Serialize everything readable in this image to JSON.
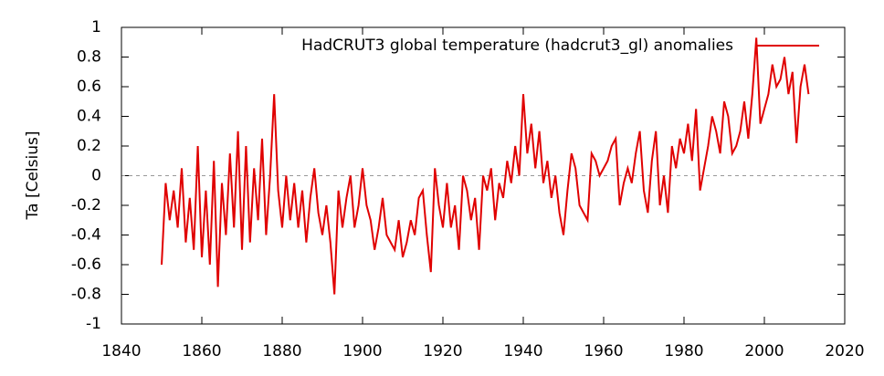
{
  "chart_data": {
    "type": "line",
    "ylabel": "Ta [Celsius]",
    "series": [
      {
        "name": "HadCRUT3 global temperature (hadcrut3_gl) anomalies",
        "color": "#e00000",
        "x": [
          1850,
          1851,
          1852,
          1853,
          1854,
          1855,
          1856,
          1857,
          1858,
          1859,
          1860,
          1861,
          1862,
          1863,
          1864,
          1865,
          1866,
          1867,
          1868,
          1869,
          1870,
          1871,
          1872,
          1873,
          1874,
          1875,
          1876,
          1877,
          1878,
          1879,
          1880,
          1881,
          1882,
          1883,
          1884,
          1885,
          1886,
          1887,
          1888,
          1889,
          1890,
          1891,
          1892,
          1893,
          1894,
          1895,
          1896,
          1897,
          1898,
          1899,
          1900,
          1901,
          1902,
          1903,
          1904,
          1905,
          1906,
          1907,
          1908,
          1909,
          1910,
          1911,
          1912,
          1913,
          1914,
          1915,
          1916,
          1917,
          1918,
          1919,
          1920,
          1921,
          1922,
          1923,
          1924,
          1925,
          1926,
          1927,
          1928,
          1929,
          1930,
          1931,
          1932,
          1933,
          1934,
          1935,
          1936,
          1937,
          1938,
          1939,
          1940,
          1941,
          1942,
          1943,
          1944,
          1945,
          1946,
          1947,
          1948,
          1949,
          1950,
          1951,
          1952,
          1953,
          1954,
          1955,
          1956,
          1957,
          1958,
          1959,
          1960,
          1961,
          1962,
          1963,
          1964,
          1965,
          1966,
          1967,
          1968,
          1969,
          1970,
          1971,
          1972,
          1973,
          1974,
          1975,
          1976,
          1977,
          1978,
          1979,
          1980,
          1981,
          1982,
          1983,
          1984,
          1985,
          1986,
          1987,
          1988,
          1989,
          1990,
          1991,
          1992,
          1993,
          1994,
          1995,
          1996,
          1997,
          1998,
          1999,
          2000,
          2001,
          2002,
          2003,
          2004,
          2005,
          2006,
          2007,
          2008,
          2009,
          2010,
          2011
        ],
        "values": [
          -0.6,
          -0.05,
          -0.3,
          -0.1,
          -0.35,
          0.05,
          -0.45,
          -0.15,
          -0.5,
          0.2,
          -0.55,
          -0.1,
          -0.6,
          0.1,
          -0.75,
          -0.05,
          -0.4,
          0.15,
          -0.35,
          0.3,
          -0.5,
          0.2,
          -0.45,
          0.05,
          -0.3,
          0.25,
          -0.4,
          0.0,
          0.55,
          -0.1,
          -0.35,
          0.0,
          -0.3,
          -0.05,
          -0.35,
          -0.1,
          -0.45,
          -0.15,
          0.05,
          -0.25,
          -0.4,
          -0.2,
          -0.45,
          -0.8,
          -0.1,
          -0.35,
          -0.15,
          0.0,
          -0.35,
          -0.2,
          0.05,
          -0.2,
          -0.3,
          -0.5,
          -0.35,
          -0.15,
          -0.4,
          -0.45,
          -0.5,
          -0.3,
          -0.55,
          -0.45,
          -0.3,
          -0.4,
          -0.15,
          -0.1,
          -0.4,
          -0.65,
          0.05,
          -0.2,
          -0.35,
          -0.05,
          -0.35,
          -0.2,
          -0.5,
          0.0,
          -0.1,
          -0.3,
          -0.15,
          -0.5,
          0.0,
          -0.1,
          0.05,
          -0.3,
          -0.05,
          -0.15,
          0.1,
          -0.05,
          0.2,
          0.0,
          0.55,
          0.15,
          0.35,
          0.05,
          0.3,
          -0.05,
          0.1,
          -0.15,
          0.0,
          -0.25,
          -0.4,
          -0.1,
          0.15,
          0.05,
          -0.2,
          -0.25,
          -0.3,
          0.15,
          0.1,
          0.0,
          0.05,
          0.1,
          0.2,
          0.25,
          -0.2,
          -0.05,
          0.05,
          -0.05,
          0.15,
          0.3,
          -0.1,
          -0.25,
          0.1,
          0.3,
          -0.2,
          0.0,
          -0.25,
          0.2,
          0.05,
          0.25,
          0.15,
          0.35,
          0.1,
          0.45,
          -0.1,
          0.05,
          0.2,
          0.4,
          0.3,
          0.15,
          0.5,
          0.4,
          0.15,
          0.2,
          0.3,
          0.5,
          0.25,
          0.55,
          0.93,
          0.35,
          0.45,
          0.55,
          0.75,
          0.6,
          0.65,
          0.8,
          0.55,
          0.7,
          0.22,
          0.6,
          0.75,
          0.55
        ]
      }
    ],
    "xlim": [
      1840,
      2020
    ],
    "xticks": [
      1840,
      1860,
      1880,
      1900,
      1920,
      1940,
      1960,
      1980,
      2000,
      2020
    ],
    "ylim": [
      -1,
      1
    ],
    "yticks": [
      -1,
      -0.8,
      -0.6,
      -0.4,
      -0.2,
      0,
      0.2,
      0.4,
      0.6,
      0.8,
      1
    ],
    "zeroline": true,
    "legend": "top-right"
  }
}
